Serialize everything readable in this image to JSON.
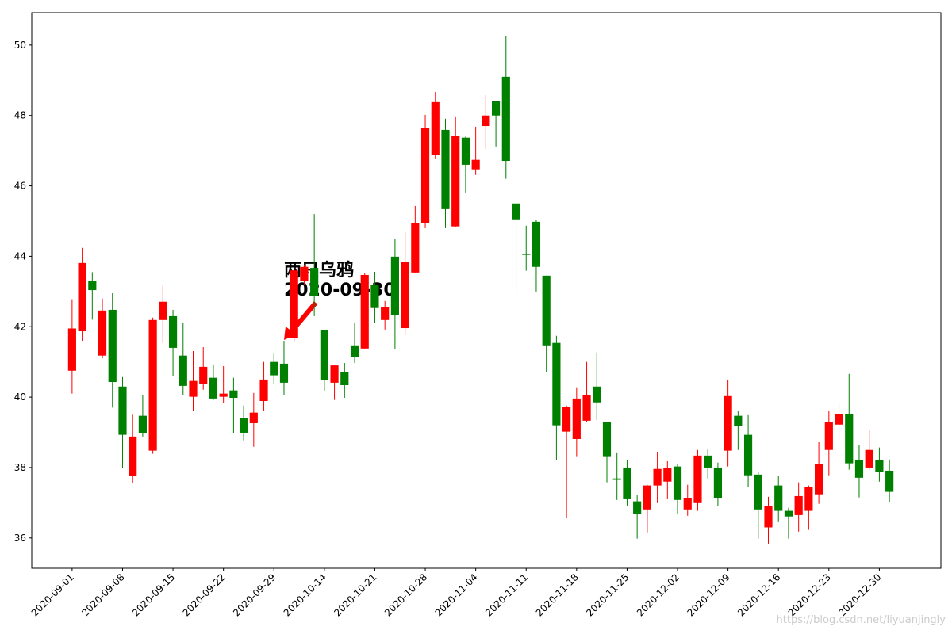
{
  "chart_data": {
    "type": "candlestick",
    "categories": [
      "2020-09-01",
      null,
      null,
      null,
      null,
      "2020-09-08",
      null,
      null,
      null,
      null,
      "2020-09-15",
      null,
      null,
      null,
      null,
      "2020-09-22",
      null,
      null,
      null,
      null,
      "2020-09-29",
      null,
      null,
      null,
      null,
      "2020-10-14",
      null,
      null,
      null,
      null,
      "2020-10-21",
      null,
      null,
      null,
      null,
      "2020-10-28",
      null,
      null,
      null,
      null,
      "2020-11-04",
      null,
      null,
      null,
      null,
      "2020-11-11",
      null,
      null,
      null,
      null,
      "2020-11-18",
      null,
      null,
      null,
      null,
      "2020-11-25",
      null,
      null,
      null,
      null,
      "2020-12-02",
      null,
      null,
      null,
      null,
      "2020-12-09",
      null,
      null,
      null,
      null,
      "2020-12-16",
      null,
      null,
      null,
      null,
      "2020-12-23",
      null,
      null,
      null,
      null,
      "2020-12-30",
      null
    ],
    "open": [
      40.75,
      41.87,
      43.29,
      41.18,
      42.48,
      40.3,
      37.76,
      39.47,
      38.48,
      42.19,
      42.3,
      41.18,
      40.01,
      40.37,
      40.55,
      40.01,
      40.19,
      39.4,
      39.26,
      39.89,
      41.0,
      40.95,
      41.67,
      43.29,
      43.67,
      41.9,
      40.41,
      40.7,
      41.47,
      41.38,
      43.18,
      42.19,
      43.99,
      41.96,
      43.54,
      44.94,
      46.89,
      47.59,
      44.85,
      47.37,
      46.47,
      47.7,
      48.42,
      49.1,
      45.5,
      44.07,
      44.98,
      43.45,
      41.54,
      39.02,
      38.81,
      39.33,
      40.3,
      39.29,
      37.69,
      38.0,
      37.04,
      36.81,
      37.49,
      37.6,
      38.03,
      36.81,
      36.99,
      38.34,
      38.0,
      38.48,
      39.47,
      38.93,
      37.8,
      36.3,
      37.49,
      36.77,
      36.65,
      36.77,
      37.24,
      38.5,
      39.22,
      39.53,
      38.21,
      38.0,
      38.21,
      37.91
    ],
    "high": [
      42.78,
      44.24,
      43.55,
      42.8,
      42.95,
      40.57,
      39.5,
      40.07,
      42.26,
      43.16,
      42.48,
      42.1,
      41.31,
      41.42,
      40.93,
      40.88,
      40.55,
      39.76,
      40.12,
      41.0,
      41.24,
      41.6,
      43.7,
      43.75,
      45.2,
      41.9,
      40.92,
      40.97,
      42.1,
      43.52,
      43.56,
      42.73,
      44.49,
      44.69,
      45.43,
      48.02,
      48.67,
      47.91,
      47.95,
      47.4,
      47.68,
      48.58,
      48.42,
      50.25,
      45.5,
      44.87,
      45.03,
      43.45,
      41.74,
      39.76,
      40.28,
      41.0,
      41.27,
      39.29,
      38.43,
      38.21,
      37.22,
      37.51,
      38.45,
      38.18,
      38.09,
      37.51,
      38.5,
      38.52,
      38.14,
      40.5,
      39.62,
      39.49,
      37.87,
      37.17,
      37.76,
      36.86,
      37.58,
      37.49,
      38.72,
      39.6,
      39.85,
      40.66,
      38.63,
      39.06,
      38.57,
      38.23
    ],
    "low": [
      40.1,
      41.6,
      42.2,
      41.1,
      39.7,
      37.98,
      37.55,
      38.88,
      38.39,
      41.54,
      40.6,
      40.07,
      39.6,
      40.21,
      39.92,
      39.83,
      38.99,
      38.77,
      38.59,
      39.62,
      40.37,
      40.05,
      41.6,
      43.2,
      42.3,
      40.16,
      39.92,
      39.98,
      40.97,
      41.36,
      42.1,
      41.92,
      41.36,
      41.76,
      43.54,
      44.8,
      46.76,
      44.8,
      44.83,
      45.79,
      46.31,
      47.05,
      47.12,
      46.2,
      42.91,
      43.59,
      43.0,
      40.7,
      38.21,
      36.56,
      38.3,
      39.29,
      39.35,
      37.58,
      37.08,
      36.92,
      35.98,
      36.16,
      36.99,
      37.1,
      36.68,
      36.63,
      36.77,
      37.69,
      36.9,
      38.03,
      38.5,
      37.44,
      35.98,
      35.84,
      36.45,
      35.98,
      36.18,
      36.23,
      36.97,
      37.78,
      38.81,
      37.94,
      37.15,
      37.94,
      37.6,
      37.01
    ],
    "close": [
      41.95,
      43.81,
      43.04,
      42.46,
      40.43,
      38.93,
      38.88,
      38.97,
      42.19,
      42.71,
      41.4,
      40.32,
      40.46,
      40.86,
      39.96,
      40.1,
      39.98,
      38.99,
      39.56,
      40.5,
      40.62,
      40.41,
      43.6,
      43.7,
      42.87,
      40.48,
      40.9,
      40.34,
      41.15,
      43.47,
      42.53,
      42.55,
      42.33,
      43.83,
      44.94,
      47.64,
      48.38,
      45.34,
      47.41,
      46.6,
      46.74,
      48.0,
      48.0,
      46.71,
      45.05,
      44.04,
      43.7,
      41.47,
      39.2,
      39.71,
      39.96,
      40.07,
      39.85,
      38.3,
      37.65,
      37.1,
      36.68,
      37.49,
      37.96,
      37.98,
      37.08,
      37.13,
      38.34,
      38.0,
      37.13,
      40.03,
      39.17,
      37.78,
      36.81,
      36.9,
      36.77,
      36.61,
      37.19,
      37.44,
      38.09,
      39.29,
      39.53,
      38.12,
      37.71,
      38.5,
      37.87,
      37.31
    ],
    "up_color": "#ff0000",
    "down_color": "#008000",
    "xlim": [
      -4.0,
      86.1
    ],
    "ylim": [
      35.14,
      50.92
    ],
    "yticks": [
      36,
      38,
      40,
      42,
      44,
      46,
      48,
      50
    ],
    "annotation": [
      "两只乌鸦",
      "2020-09-30"
    ],
    "watermark": "https://blog.csdn.net/liyuanjingly"
  }
}
